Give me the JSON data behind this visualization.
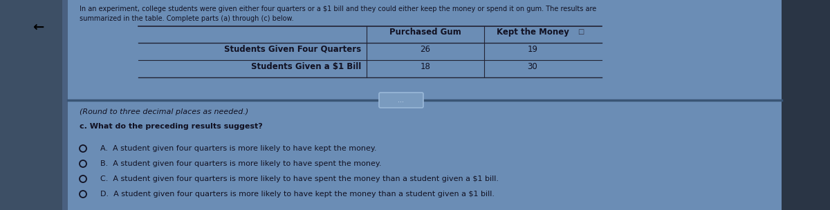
{
  "bg_color": "#6b8db5",
  "left_panel_color": "#3a4f6a",
  "right_panel_color": "#2a3545",
  "content_bg": "#6b8db5",
  "table_bg": "#6b8db5",
  "dark_text": "#111122",
  "header_line1": "In an experiment, college students were given either four quarters or a $1 bill and they could either keep the money or spend it on gum.",
  "header_line2": "summarized in the table. Complete parts (a) through (c) below.",
  "col1_header": "Purchased Gum",
  "col2_header": "Kept the Money",
  "row1_label": "Students Given Four Quarters",
  "row2_label": "Students Given a $1 Bill",
  "row1_val1": "26",
  "row1_val2": "19",
  "row2_val1": "18",
  "row2_val2": "30",
  "round_note": "(Round to three decimal places as needed.)",
  "part_c_label": "c. What do the preceding results suggest?",
  "option_A": "A.  A student given four quarters is more likely to have kept the money.",
  "option_B": "B.  A student given four quarters is more likely to have spent the money.",
  "option_C": "C.  A student given four quarters is more likely to have spent the money than a student given a $1 bill.",
  "option_D": "D.  A student given four quarters is more likely to have kept the money than a student given a $1 bill.",
  "arrow_symbol": "←",
  "ellipsis_button": "..."
}
